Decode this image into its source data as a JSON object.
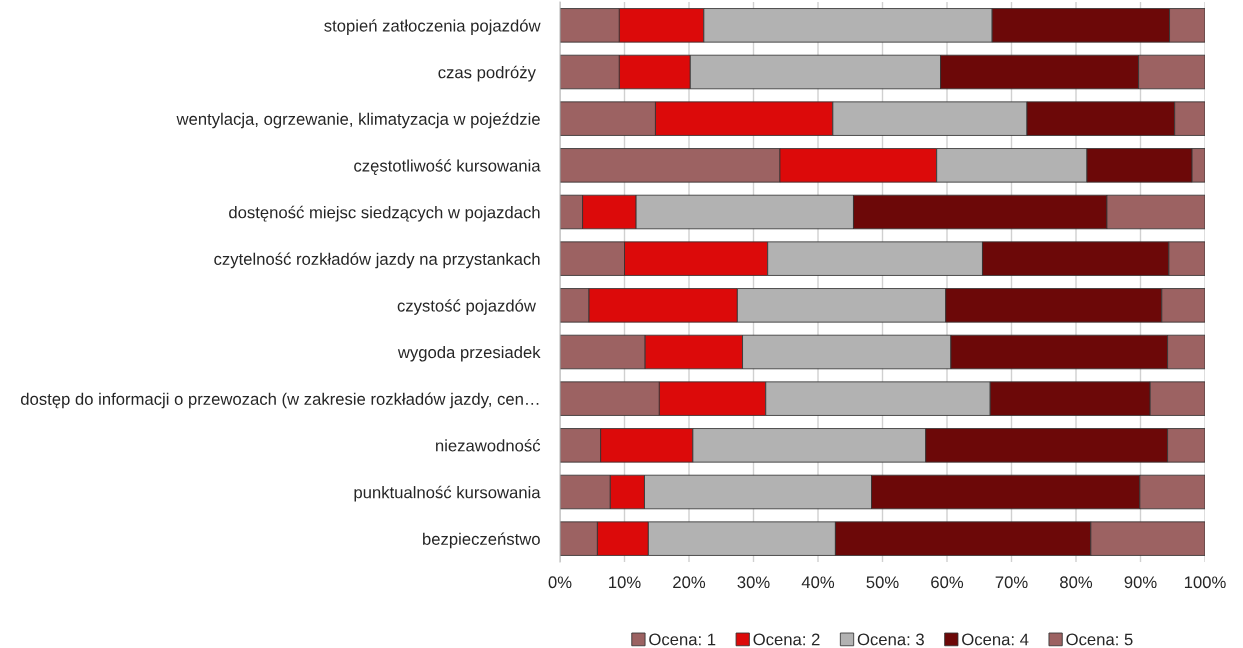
{
  "chart_data": {
    "type": "bar",
    "orientation": "horizontal",
    "stacked": true,
    "categories": [
      "stopień zatłoczenia pojazdów",
      "czas podróży ",
      "wentylacja, ogrzewanie, klimatyzacja w pojeździe",
      "częstotliwość kursowania",
      "dostęność miejsc siedzących w pojazdach",
      "czytelność rozkładów jazdy na przystankach",
      "czystość pojazdów ",
      "wygoda przesiadek",
      "dostęp do informacji o przewozach (w zakresie rozkładów jazdy, cen…",
      "niezawodność",
      "punktualność kursowania",
      "bezpieczeństwo"
    ],
    "series": [
      {
        "name": "Ocena: 1",
        "color": "#9c6262",
        "values": [
          9.2,
          9.2,
          14.8,
          34.1,
          3.5,
          10,
          4.5,
          13.2,
          15.4,
          6.3,
          7.8,
          5.8
        ]
      },
      {
        "name": "Ocena: 2",
        "color": "#dc0a0a",
        "values": [
          13.1,
          11,
          27.5,
          24.3,
          8.3,
          22.2,
          23,
          15.1,
          16.5,
          14.3,
          5.3,
          7.9
        ]
      },
      {
        "name": "Ocena: 3",
        "color": "#b2b2b2",
        "values": [
          44.7,
          38.8,
          30.1,
          23.3,
          33.7,
          33.3,
          32.3,
          32.3,
          34.8,
          36.1,
          35.2,
          29
        ]
      },
      {
        "name": "Ocena: 4",
        "color": "#6c0808",
        "values": [
          27.5,
          30.7,
          22.9,
          16.3,
          39.3,
          28.9,
          33.5,
          33.6,
          24.8,
          37.5,
          41.6,
          39.6
        ]
      },
      {
        "name": "Ocena: 5",
        "color": "#9c6262",
        "values": [
          5.5,
          10.3,
          4.7,
          2,
          15.2,
          5.6,
          6.7,
          5.8,
          8.5,
          5.8,
          10.1,
          17.7
        ]
      }
    ],
    "xlim": [
      0,
      100
    ],
    "xticks": [
      {
        "value": 0,
        "label": "0%"
      },
      {
        "value": 10,
        "label": "10%"
      },
      {
        "value": 20,
        "label": "20%"
      },
      {
        "value": 30,
        "label": "30%"
      },
      {
        "value": 40,
        "label": "40%"
      },
      {
        "value": 50,
        "label": "50%"
      },
      {
        "value": 60,
        "label": "60%"
      },
      {
        "value": 70,
        "label": "70%"
      },
      {
        "value": 80,
        "label": "80%"
      },
      {
        "value": 90,
        "label": "90%"
      },
      {
        "value": 100,
        "label": "100%"
      }
    ],
    "grid": "x",
    "legend": "bottom"
  }
}
